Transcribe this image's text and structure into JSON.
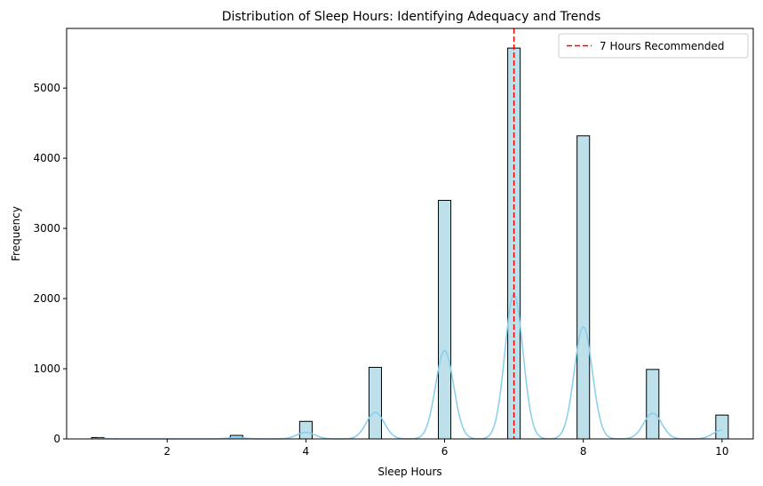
{
  "chart_data": {
    "type": "bar",
    "title": "Distribution of Sleep Hours: Identifying Adequacy and Trends",
    "xlabel": "Sleep Hours",
    "ylabel": "Frequency",
    "xlim": [
      0.55,
      10.45
    ],
    "ylim": [
      0,
      5850
    ],
    "xticks": [
      2,
      4,
      6,
      8,
      10
    ],
    "yticks": [
      0,
      1000,
      2000,
      3000,
      4000,
      5000
    ],
    "bin_width": 0.18,
    "bars": [
      {
        "x": 1,
        "value": 20
      },
      {
        "x": 3,
        "value": 50
      },
      {
        "x": 4,
        "value": 250
      },
      {
        "x": 5,
        "value": 1020
      },
      {
        "x": 6,
        "value": 3400
      },
      {
        "x": 7,
        "value": 5570
      },
      {
        "x": 8,
        "value": 4320
      },
      {
        "x": 9,
        "value": 990
      },
      {
        "x": 10,
        "value": 340
      }
    ],
    "bar_color": "#add8e6",
    "kde": {
      "color": "#87ceeb",
      "bandwidth": 0.13,
      "peak_scale": 0.37,
      "x_start": 1,
      "x_end": 10
    },
    "reference_line": {
      "x": 7,
      "label": "7 Hours Recommended",
      "color": "#ff0000",
      "style": "dashed"
    },
    "legend": {
      "placement": "top-right"
    },
    "grid": false
  }
}
